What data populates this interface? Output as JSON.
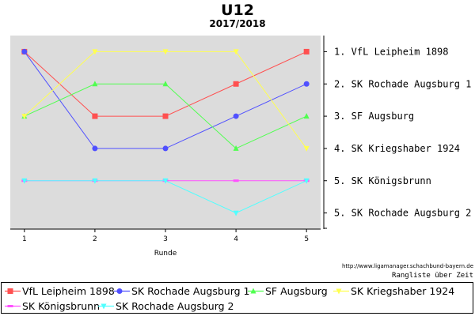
{
  "chart_data": {
    "type": "line",
    "title": "U12",
    "subtitle": "2017/2018",
    "xlabel": "Runde",
    "x": [
      1,
      2,
      3,
      4,
      5
    ],
    "y_inverted": true,
    "ylim": [
      0.5,
      6.5
    ],
    "grid": false,
    "legend_position": "bottom",
    "series": [
      {
        "name": "VfL Leipheim 1898",
        "values": [
          1,
          3,
          3,
          2,
          1
        ],
        "color": "#ff5050",
        "marker": "square"
      },
      {
        "name": "SK Rochade Augsburg 1",
        "values": [
          1,
          4,
          4,
          3,
          2
        ],
        "color": "#5050ff",
        "marker": "circle"
      },
      {
        "name": "SF Augsburg",
        "values": [
          3,
          2,
          2,
          4,
          3
        ],
        "color": "#50ff50",
        "marker": "triangle-up"
      },
      {
        "name": "SK Kriegshaber 1924",
        "values": [
          3,
          1,
          1,
          1,
          4
        ],
        "color": "#ffff50",
        "marker": "triangle-down"
      },
      {
        "name": "SK Königsbrunn",
        "values": [
          5,
          5,
          5,
          5,
          5
        ],
        "color": "#ff50ff",
        "marker": "dash"
      },
      {
        "name": "SK Rochade Augsburg 2",
        "values": [
          5,
          5,
          5,
          6,
          5
        ],
        "color": "#50ffff",
        "marker": "triangle-down"
      }
    ],
    "final_ranking": [
      "1. VfL Leipheim 1898",
      "2. SK Rochade Augsburg 1",
      "3. SF Augsburg",
      "4. SK Kriegshaber 1924",
      "5. SK Königsbrunn",
      "5. SK Rochade Augsburg 2"
    ]
  },
  "footer": {
    "source_url": "http://www.ligamanager.schachbund-bayern.de",
    "caption": "Rangliste über Zeit"
  },
  "colors": {
    "plot_background": "#dcdcdc",
    "axis": "#000000"
  }
}
